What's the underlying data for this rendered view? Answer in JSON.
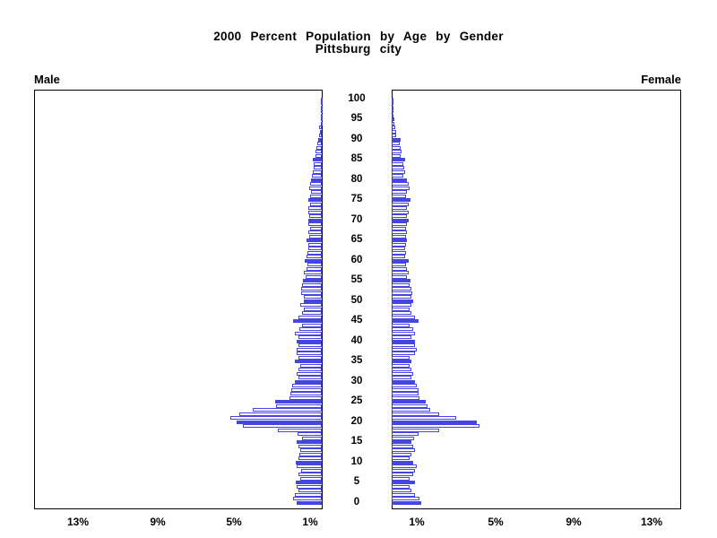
{
  "title": {
    "line1": "2000 Percent Population by Age by Gender",
    "line2": "Pittsburg city"
  },
  "panels": {
    "male_label": "Male",
    "female_label": "Female"
  },
  "axes": {
    "age_tick_labels": [
      "0",
      "5",
      "10",
      "15",
      "20",
      "25",
      "30",
      "35",
      "40",
      "45",
      "50",
      "55",
      "60",
      "65",
      "70",
      "75",
      "80",
      "85",
      "90",
      "95",
      "100"
    ],
    "male_pct_tick_labels": [
      "13%",
      "9%",
      "5%",
      "1%"
    ],
    "female_pct_tick_labels": [
      "1%",
      "5%",
      "9%",
      "13%"
    ]
  },
  "colors": {
    "bar_blue": "#4545E0",
    "axis_black": "#000000"
  },
  "chart_data": {
    "type": "bar",
    "subtype": "population-pyramid",
    "title": "2000 Percent Population by Age by Gender",
    "subtitle": "Pittsburg city",
    "orientation": "horizontal-mirrored",
    "age_min": 0,
    "age_max": 100,
    "x_unit": "percent of population",
    "xlim_each_side": [
      0,
      15
    ],
    "x_tick_values": [
      1,
      5,
      9,
      13
    ],
    "grid": false,
    "legend": "none",
    "fill_rule": "bars for ages divisible by 5 are solid blue; other ages are white with blue outline",
    "series": [
      {
        "name": "Male",
        "side": "left",
        "values": [
          1.3,
          1.48,
          1.39,
          1.2,
          1.3,
          1.33,
          1.11,
          1.2,
          1.05,
          1.3,
          1.33,
          1.2,
          1.14,
          1.11,
          1.2,
          1.31,
          1.02,
          1.24,
          2.24,
          4.07,
          4.4,
          4.71,
          4.24,
          3.55,
          2.35,
          2.39,
          1.67,
          1.62,
          1.57,
          1.53,
          1.39,
          1.2,
          1.3,
          1.2,
          1.11,
          1.39,
          1.2,
          1.3,
          1.3,
          1.2,
          1.3,
          1.2,
          1.39,
          1.14,
          1.02,
          1.48,
          1.2,
          1.02,
          0.93,
          1.11,
          0.93,
          0.93,
          1.05,
          1.08,
          1.02,
          0.99,
          0.83,
          0.93,
          0.8,
          0.74,
          0.86,
          0.77,
          0.74,
          0.71,
          0.68,
          0.8,
          0.65,
          0.71,
          0.62,
          0.68,
          0.71,
          0.65,
          0.71,
          0.68,
          0.62,
          0.68,
          0.62,
          0.55,
          0.65,
          0.59,
          0.55,
          0.49,
          0.46,
          0.43,
          0.4,
          0.46,
          0.31,
          0.34,
          0.28,
          0.22,
          0.19,
          0.15,
          0.09,
          0.12,
          0.06,
          0.05,
          0.03,
          0.03,
          0.02,
          0.01,
          0.01
        ]
      },
      {
        "name": "Female",
        "side": "right",
        "values": [
          1.53,
          1.43,
          1.2,
          1.02,
          0.93,
          1.2,
          0.93,
          1.11,
          1.2,
          1.3,
          1.11,
          0.93,
          1.02,
          1.2,
          1.11,
          1.02,
          1.14,
          1.37,
          2.45,
          4.5,
          4.38,
          3.3,
          2.45,
          1.99,
          1.85,
          1.76,
          1.43,
          1.39,
          1.39,
          1.3,
          1.2,
          1.02,
          1.11,
          1.02,
          0.93,
          1.02,
          0.93,
          1.2,
          1.3,
          1.2,
          1.2,
          1.02,
          1.2,
          1.11,
          0.93,
          1.39,
          1.2,
          1.02,
          0.93,
          1.02,
          1.11,
          1.02,
          1.08,
          1.02,
          0.93,
          0.99,
          0.8,
          0.86,
          0.8,
          0.74,
          0.86,
          0.68,
          0.74,
          0.68,
          0.74,
          0.8,
          0.74,
          0.8,
          0.74,
          0.8,
          0.86,
          0.8,
          0.86,
          0.8,
          0.86,
          0.99,
          0.74,
          0.8,
          0.93,
          0.86,
          0.8,
          0.62,
          0.71,
          0.65,
          0.59,
          0.68,
          0.46,
          0.52,
          0.46,
          0.4,
          0.46,
          0.25,
          0.22,
          0.19,
          0.15,
          0.12,
          0.08,
          0.06,
          0.05,
          0.03,
          0.03
        ]
      }
    ]
  }
}
